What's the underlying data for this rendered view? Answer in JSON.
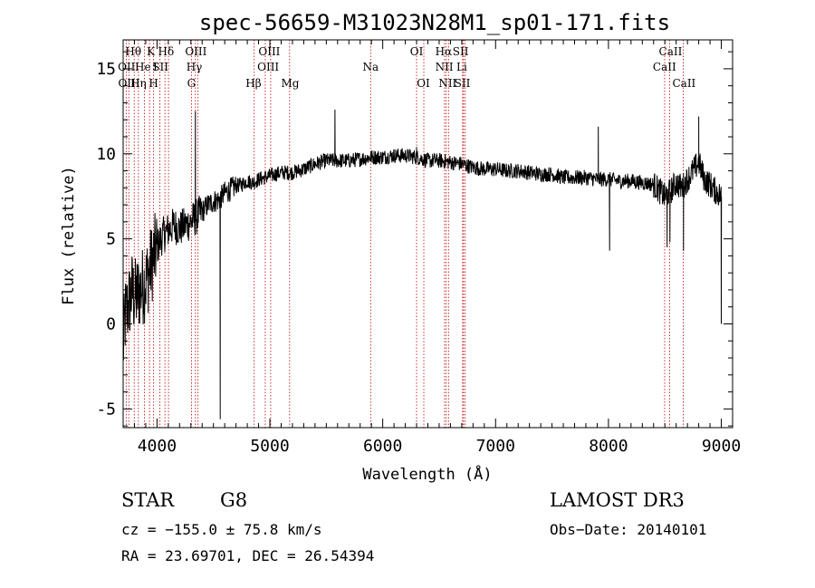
{
  "chart_data": {
    "type": "line",
    "title": "spec-56659-M31023N28M1_sp01-171.fits",
    "xlabel": "Wavelength (Å)",
    "ylabel": "Flux (relative)",
    "xlim": [
      3700,
      9100
    ],
    "ylim": [
      -6.1,
      16.7
    ],
    "xticks": [
      4000,
      5000,
      6000,
      7000,
      8000,
      9000
    ],
    "yticks": [
      -5,
      0,
      5,
      10,
      15
    ],
    "grid": false,
    "spectrum_anchors": [
      [
        3700,
        -1.5
      ],
      [
        3720,
        0.5
      ],
      [
        3750,
        1.2
      ],
      [
        3780,
        2.0
      ],
      [
        3800,
        1.5
      ],
      [
        3850,
        2.0
      ],
      [
        3900,
        2.5
      ],
      [
        3950,
        3.5
      ],
      [
        4000,
        4.5
      ],
      [
        4050,
        5.2
      ],
      [
        4100,
        5.5
      ],
      [
        4150,
        5.8
      ],
      [
        4200,
        5.6
      ],
      [
        4250,
        5.8
      ],
      [
        4300,
        6.0
      ],
      [
        4350,
        6.3
      ],
      [
        4400,
        6.6
      ],
      [
        4450,
        7.0
      ],
      [
        4500,
        7.2
      ],
      [
        4550,
        7.3
      ],
      [
        4600,
        7.7
      ],
      [
        4650,
        7.9
      ],
      [
        4700,
        8.1
      ],
      [
        4750,
        8.2
      ],
      [
        4800,
        8.4
      ],
      [
        4850,
        8.3
      ],
      [
        4900,
        8.5
      ],
      [
        4950,
        8.6
      ],
      [
        5000,
        8.7
      ],
      [
        5100,
        8.9
      ],
      [
        5200,
        8.9
      ],
      [
        5300,
        9.1
      ],
      [
        5400,
        9.4
      ],
      [
        5500,
        9.6
      ],
      [
        5600,
        9.6
      ],
      [
        5700,
        9.6
      ],
      [
        5800,
        9.7
      ],
      [
        5900,
        9.8
      ],
      [
        6000,
        9.8
      ],
      [
        6100,
        9.9
      ],
      [
        6200,
        9.9
      ],
      [
        6300,
        9.8
      ],
      [
        6400,
        9.6
      ],
      [
        6500,
        9.6
      ],
      [
        6600,
        9.5
      ],
      [
        6700,
        9.4
      ],
      [
        6800,
        9.2
      ],
      [
        6900,
        9.1
      ],
      [
        7000,
        9.1
      ],
      [
        7100,
        9.0
      ],
      [
        7200,
        9.0
      ],
      [
        7300,
        8.9
      ],
      [
        7400,
        8.8
      ],
      [
        7500,
        8.8
      ],
      [
        7600,
        8.6
      ],
      [
        7700,
        8.6
      ],
      [
        7800,
        8.6
      ],
      [
        7900,
        8.5
      ],
      [
        8000,
        8.5
      ],
      [
        8100,
        8.4
      ],
      [
        8200,
        8.4
      ],
      [
        8300,
        8.3
      ],
      [
        8400,
        8.2
      ],
      [
        8500,
        7.5
      ],
      [
        8550,
        7.8
      ],
      [
        8600,
        8.3
      ],
      [
        8650,
        8.0
      ],
      [
        8700,
        8.5
      ],
      [
        8750,
        9.0
      ],
      [
        8800,
        9.5
      ],
      [
        8850,
        8.5
      ],
      [
        8900,
        8.2
      ],
      [
        8950,
        7.8
      ],
      [
        9000,
        7.5
      ]
    ],
    "spectrum_features": [
      [
        4340,
        12.5
      ],
      [
        4560,
        -5.6
      ],
      [
        5577,
        12.6
      ],
      [
        6300,
        10.4
      ],
      [
        7910,
        11.6
      ],
      [
        8010,
        4.3
      ],
      [
        8520,
        4.5
      ],
      [
        8545,
        4.8
      ],
      [
        8665,
        4.3
      ],
      [
        8800,
        12.2
      ],
      [
        9000,
        0.0
      ]
    ],
    "line_markers": [
      {
        "label": "Hθ",
        "x": 3798,
        "row": 1,
        "text_x": 3790
      },
      {
        "label": "K",
        "x": 3934,
        "row": 1,
        "text_x": 3945
      },
      {
        "label": "Hδ",
        "x": 4102,
        "row": 1,
        "text_x": 4080
      },
      {
        "label": "OIII",
        "x": 4363,
        "row": 1,
        "text_x": 4345
      },
      {
        "label": "OIII",
        "x": 5007,
        "row": 1,
        "text_x": 4995
      },
      {
        "label": "OI",
        "x": 6300,
        "row": 1,
        "text_x": 6300
      },
      {
        "label": "Hα",
        "x": 6563,
        "row": 1,
        "text_x": 6540
      },
      {
        "label": "SII",
        "x": 6716,
        "row": 1,
        "text_x": 6690
      },
      {
        "label": "CaII",
        "x": 8542,
        "row": 1,
        "text_x": 8550
      },
      {
        "label": "OII",
        "x": 3727,
        "row": 2,
        "text_x": 3730
      },
      {
        "label": "He",
        "x": 3889,
        "row": 2,
        "text_x": 3875
      },
      {
        "label": "I",
        "x": 4026,
        "row": 2,
        "text_x": 3985
      },
      {
        "label": "SII",
        "x": 4070,
        "row": 2,
        "text_x": 4030
      },
      {
        "label": "Hγ",
        "x": 4340,
        "row": 2,
        "text_x": 4330
      },
      {
        "label": "OIII",
        "x": 4959,
        "row": 2,
        "text_x": 4985
      },
      {
        "label": "Na",
        "x": 5893,
        "row": 2,
        "text_x": 5893
      },
      {
        "label": "NII",
        "x": 6548,
        "row": 2,
        "text_x": 6545
      },
      {
        "label": "Li",
        "x": 6708,
        "row": 2,
        "text_x": 6700
      },
      {
        "label": "CaII",
        "x": 8498,
        "row": 2,
        "text_x": 8497
      },
      {
        "label": "OIII",
        "x": 3750,
        "row": 3,
        "text_x": 3752
      },
      {
        "label": "Hη",
        "x": 3835,
        "row": 3,
        "text_x": 3835
      },
      {
        "label": "H",
        "x": 3968,
        "row": 3,
        "text_x": 3970
      },
      {
        "label": "G",
        "x": 4305,
        "row": 3,
        "text_x": 4305
      },
      {
        "label": "Hβ",
        "x": 4861,
        "row": 3,
        "text_x": 4855
      },
      {
        "label": "Mg",
        "x": 5175,
        "row": 3,
        "text_x": 5180
      },
      {
        "label": "OI",
        "x": 6364,
        "row": 3,
        "text_x": 6360
      },
      {
        "label": "NII",
        "x": 6583,
        "row": 3,
        "text_x": 6575
      },
      {
        "label": "SII",
        "x": 6731,
        "row": 3,
        "text_x": 6705
      },
      {
        "label": "CaII",
        "x": 8662,
        "row": 3,
        "text_x": 8670
      }
    ]
  },
  "info": {
    "object_class": "STAR",
    "subclass": "G8",
    "survey": "LAMOST DR3",
    "cz": "cz = −155.0 ± 75.8 km/s",
    "obs_date": "Obs−Date: 20140101",
    "coords": "RA =  23.69701, DEC =  26.54394"
  },
  "colors": {
    "spectrum": "#000000",
    "marker": "#c00000"
  }
}
